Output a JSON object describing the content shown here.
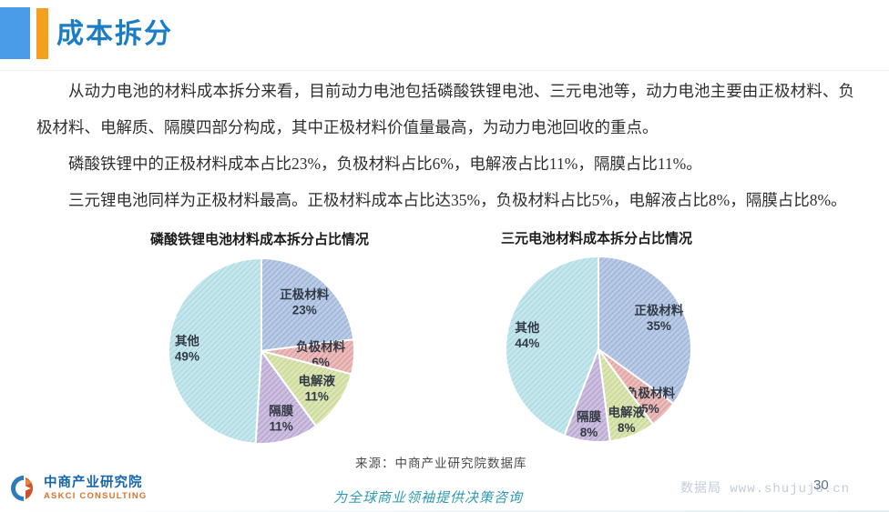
{
  "header": {
    "title": "成本拆分"
  },
  "paragraphs": [
    "从动力电池的材料成本拆分来看，目前动力电池包括磷酸铁锂电池、三元电池等，动力电池主要由正极材料、负极材料、电解质、隔膜四部分构成，其中正极材料价值量最高，为动力电池回收的重点。",
    "磷酸铁锂中的正极材料成本占比23%，负极材料占比6%，电解液占比11%，隔膜占比11%。",
    "三元锂电池同样为正极材料最高。正极材料成本占比达35%，负极材料占比5%，电解液占比8%，隔膜占比8%。"
  ],
  "chart_data": [
    {
      "type": "pie",
      "title": "磷酸铁锂电池材料成本拆分占比情况",
      "unit": "%",
      "start_angle_deg": 0,
      "direction": "clockwise",
      "slices": [
        {
          "label": "正极材料",
          "value": 23,
          "color": "#b9cbe6",
          "hatch_color": "#9cb4d8",
          "label_radius": 0.7
        },
        {
          "label": "负极材料",
          "value": 6,
          "color": "#ecbcba",
          "hatch_color": "#db9e9d",
          "label_radius": 0.64
        },
        {
          "label": "电解液",
          "value": 11,
          "color": "#dce5b4",
          "hatch_color": "#c8d693",
          "label_radius": 0.72
        },
        {
          "label": "隔膜",
          "value": 11,
          "color": "#cdbfdf",
          "hatch_color": "#b6a3cf",
          "label_radius": 0.76
        },
        {
          "label": "其他",
          "value": 49,
          "color": "#c5e7ec",
          "hatch_color": "#a8d9e2",
          "label_radius": 0.8
        }
      ]
    },
    {
      "type": "pie",
      "title": "三元电池材料成本拆分占比情况",
      "unit": "%",
      "start_angle_deg": 0,
      "direction": "clockwise",
      "slices": [
        {
          "label": "正极材料",
          "value": 35,
          "color": "#b9cbe6",
          "hatch_color": "#9cb4d8",
          "label_radius": 0.73
        },
        {
          "label": "负极材料",
          "value": 5,
          "color": "#ecbcba",
          "hatch_color": "#db9e9d",
          "label_radius": 0.79
        },
        {
          "label": "电解液",
          "value": 8,
          "color": "#dce5b4",
          "hatch_color": "#c8d693",
          "label_radius": 0.82
        },
        {
          "label": "隔膜",
          "value": 8,
          "color": "#cdbfdf",
          "hatch_color": "#b6a3cf",
          "label_radius": 0.82
        },
        {
          "label": "其他",
          "value": 44,
          "color": "#c5e7ec",
          "hatch_color": "#a8d9e2",
          "label_radius": 0.78
        }
      ]
    }
  ],
  "source_note": "来源：中商产业研究院数据库",
  "footer": {
    "logo_cn": "中商产业研究院",
    "logo_en": "ASKCI CONSULTING",
    "tagline": "为全球商业领袖提供决策咨询",
    "watermark": "数据局 www.shujuju.cn",
    "page_number": "30"
  },
  "colors": {
    "accent_blue": "#4a9ce8",
    "accent_orange": "#f5a01d",
    "title_blue": "#1b7ec5",
    "tagline_teal": "#2f9ab4"
  }
}
